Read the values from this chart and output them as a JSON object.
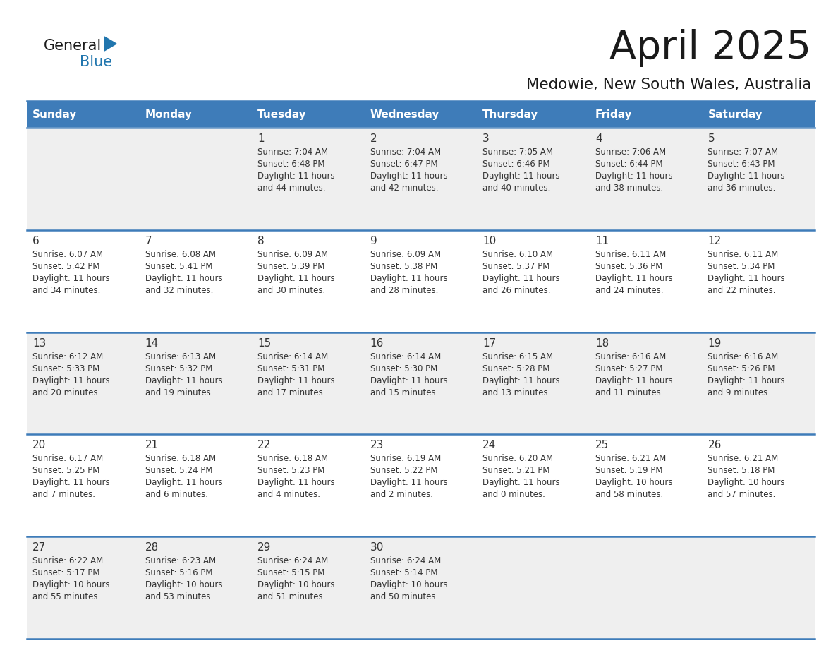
{
  "title": "April 2025",
  "subtitle": "Medowie, New South Wales, Australia",
  "days_of_week": [
    "Sunday",
    "Monday",
    "Tuesday",
    "Wednesday",
    "Thursday",
    "Friday",
    "Saturday"
  ],
  "header_bg": "#3E7CB9",
  "header_text": "#FFFFFF",
  "row_bg_odd": "#EFEFEF",
  "row_bg_even": "#FFFFFF",
  "cell_text_color": "#333333",
  "day_num_color": "#333333",
  "grid_line_color": "#3E7CB9",
  "logo_general_color": "#1a1a1a",
  "logo_blue_color": "#2176AE",
  "calendar_data": [
    [
      {
        "day": null,
        "info": ""
      },
      {
        "day": null,
        "info": ""
      },
      {
        "day": 1,
        "info": "Sunrise: 7:04 AM\nSunset: 6:48 PM\nDaylight: 11 hours\nand 44 minutes."
      },
      {
        "day": 2,
        "info": "Sunrise: 7:04 AM\nSunset: 6:47 PM\nDaylight: 11 hours\nand 42 minutes."
      },
      {
        "day": 3,
        "info": "Sunrise: 7:05 AM\nSunset: 6:46 PM\nDaylight: 11 hours\nand 40 minutes."
      },
      {
        "day": 4,
        "info": "Sunrise: 7:06 AM\nSunset: 6:44 PM\nDaylight: 11 hours\nand 38 minutes."
      },
      {
        "day": 5,
        "info": "Sunrise: 7:07 AM\nSunset: 6:43 PM\nDaylight: 11 hours\nand 36 minutes."
      }
    ],
    [
      {
        "day": 6,
        "info": "Sunrise: 6:07 AM\nSunset: 5:42 PM\nDaylight: 11 hours\nand 34 minutes."
      },
      {
        "day": 7,
        "info": "Sunrise: 6:08 AM\nSunset: 5:41 PM\nDaylight: 11 hours\nand 32 minutes."
      },
      {
        "day": 8,
        "info": "Sunrise: 6:09 AM\nSunset: 5:39 PM\nDaylight: 11 hours\nand 30 minutes."
      },
      {
        "day": 9,
        "info": "Sunrise: 6:09 AM\nSunset: 5:38 PM\nDaylight: 11 hours\nand 28 minutes."
      },
      {
        "day": 10,
        "info": "Sunrise: 6:10 AM\nSunset: 5:37 PM\nDaylight: 11 hours\nand 26 minutes."
      },
      {
        "day": 11,
        "info": "Sunrise: 6:11 AM\nSunset: 5:36 PM\nDaylight: 11 hours\nand 24 minutes."
      },
      {
        "day": 12,
        "info": "Sunrise: 6:11 AM\nSunset: 5:34 PM\nDaylight: 11 hours\nand 22 minutes."
      }
    ],
    [
      {
        "day": 13,
        "info": "Sunrise: 6:12 AM\nSunset: 5:33 PM\nDaylight: 11 hours\nand 20 minutes."
      },
      {
        "day": 14,
        "info": "Sunrise: 6:13 AM\nSunset: 5:32 PM\nDaylight: 11 hours\nand 19 minutes."
      },
      {
        "day": 15,
        "info": "Sunrise: 6:14 AM\nSunset: 5:31 PM\nDaylight: 11 hours\nand 17 minutes."
      },
      {
        "day": 16,
        "info": "Sunrise: 6:14 AM\nSunset: 5:30 PM\nDaylight: 11 hours\nand 15 minutes."
      },
      {
        "day": 17,
        "info": "Sunrise: 6:15 AM\nSunset: 5:28 PM\nDaylight: 11 hours\nand 13 minutes."
      },
      {
        "day": 18,
        "info": "Sunrise: 6:16 AM\nSunset: 5:27 PM\nDaylight: 11 hours\nand 11 minutes."
      },
      {
        "day": 19,
        "info": "Sunrise: 6:16 AM\nSunset: 5:26 PM\nDaylight: 11 hours\nand 9 minutes."
      }
    ],
    [
      {
        "day": 20,
        "info": "Sunrise: 6:17 AM\nSunset: 5:25 PM\nDaylight: 11 hours\nand 7 minutes."
      },
      {
        "day": 21,
        "info": "Sunrise: 6:18 AM\nSunset: 5:24 PM\nDaylight: 11 hours\nand 6 minutes."
      },
      {
        "day": 22,
        "info": "Sunrise: 6:18 AM\nSunset: 5:23 PM\nDaylight: 11 hours\nand 4 minutes."
      },
      {
        "day": 23,
        "info": "Sunrise: 6:19 AM\nSunset: 5:22 PM\nDaylight: 11 hours\nand 2 minutes."
      },
      {
        "day": 24,
        "info": "Sunrise: 6:20 AM\nSunset: 5:21 PM\nDaylight: 11 hours\nand 0 minutes."
      },
      {
        "day": 25,
        "info": "Sunrise: 6:21 AM\nSunset: 5:19 PM\nDaylight: 10 hours\nand 58 minutes."
      },
      {
        "day": 26,
        "info": "Sunrise: 6:21 AM\nSunset: 5:18 PM\nDaylight: 10 hours\nand 57 minutes."
      }
    ],
    [
      {
        "day": 27,
        "info": "Sunrise: 6:22 AM\nSunset: 5:17 PM\nDaylight: 10 hours\nand 55 minutes."
      },
      {
        "day": 28,
        "info": "Sunrise: 6:23 AM\nSunset: 5:16 PM\nDaylight: 10 hours\nand 53 minutes."
      },
      {
        "day": 29,
        "info": "Sunrise: 6:24 AM\nSunset: 5:15 PM\nDaylight: 10 hours\nand 51 minutes."
      },
      {
        "day": 30,
        "info": "Sunrise: 6:24 AM\nSunset: 5:14 PM\nDaylight: 10 hours\nand 50 minutes."
      },
      {
        "day": null,
        "info": ""
      },
      {
        "day": null,
        "info": ""
      },
      {
        "day": null,
        "info": ""
      }
    ]
  ]
}
